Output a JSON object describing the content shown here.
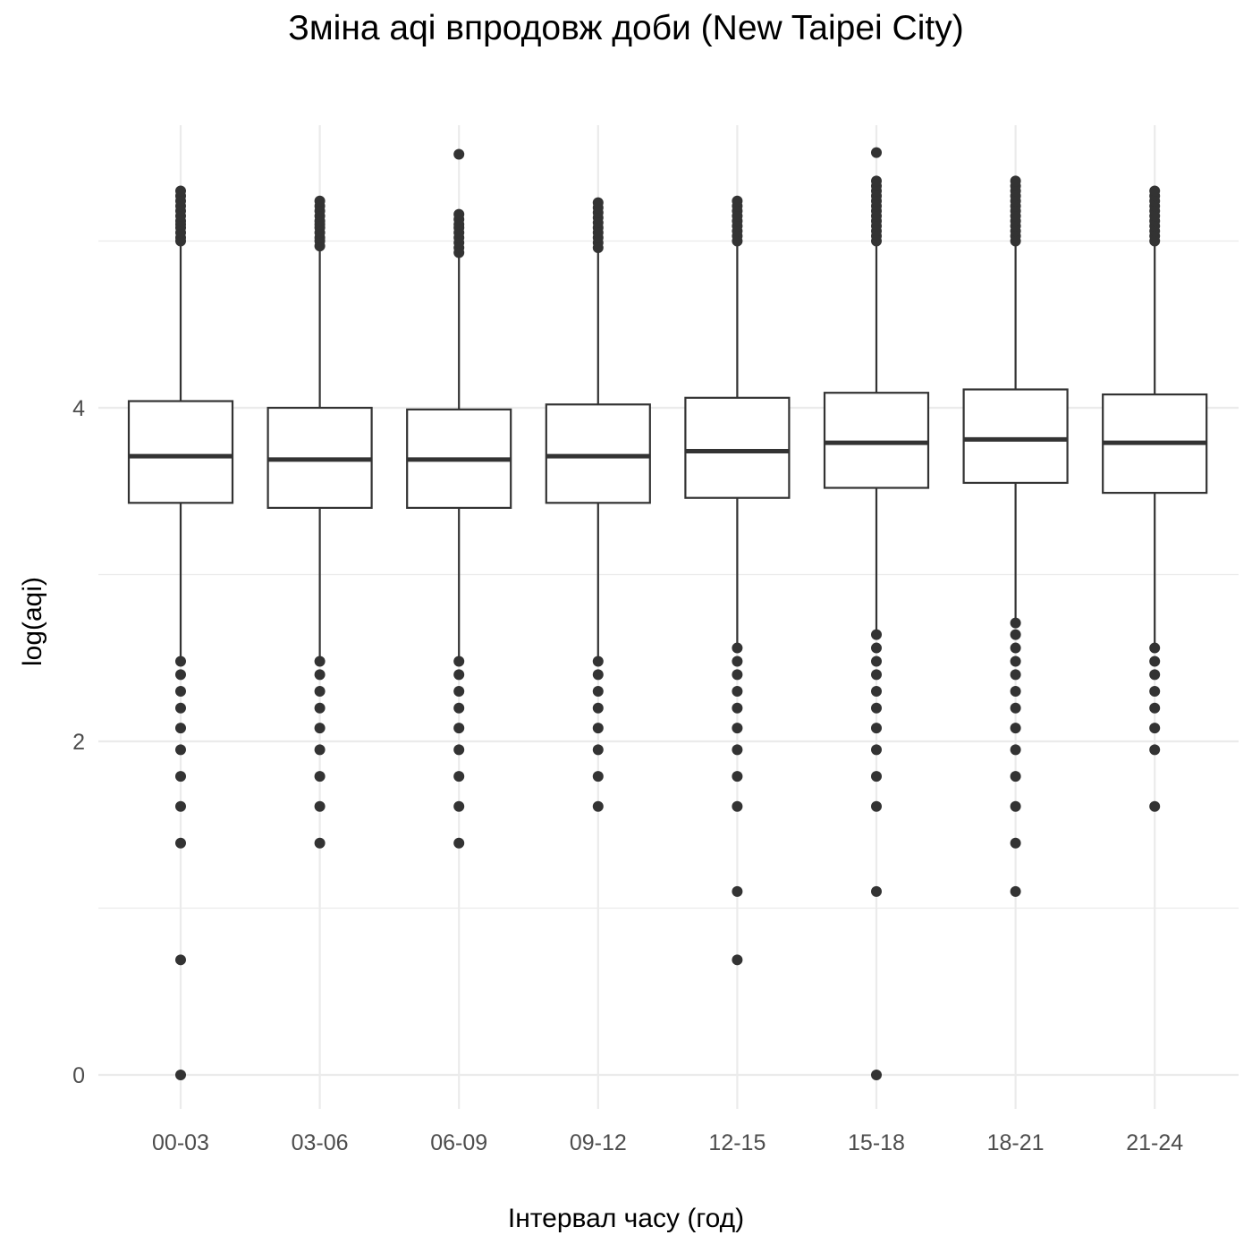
{
  "chart_data": {
    "type": "box",
    "title": "Зміна aqi впродовж доби (New Taipei City)",
    "xlabel": "Інтервал часу (год)",
    "ylabel": "log(aqi)",
    "ylim": [
      -0.25,
      5.6
    ],
    "y_ticks": [
      0,
      2,
      4
    ],
    "grid": true,
    "categories": [
      "00-03",
      "03-06",
      "06-09",
      "09-12",
      "12-15",
      "15-18",
      "18-21",
      "21-24"
    ],
    "boxes": [
      {
        "q1": 3.43,
        "median": 3.71,
        "q3": 4.04,
        "whisker_low": 2.5,
        "whisker_high": 5.0,
        "outliers_high": [
          5.0,
          5.02,
          5.05,
          5.08,
          5.1,
          5.12,
          5.15,
          5.18,
          5.21,
          5.24,
          5.27,
          5.3
        ],
        "outliers_low": [
          2.48,
          2.4,
          2.3,
          2.2,
          2.08,
          1.95,
          1.79,
          1.61,
          1.39,
          0.69,
          0.0
        ]
      },
      {
        "q1": 3.4,
        "median": 3.69,
        "q3": 4.0,
        "whisker_low": 2.5,
        "whisker_high": 4.97,
        "outliers_high": [
          4.97,
          5.0,
          5.02,
          5.05,
          5.08,
          5.1,
          5.12,
          5.15,
          5.18,
          5.21,
          5.24
        ],
        "outliers_low": [
          2.48,
          2.4,
          2.3,
          2.2,
          2.08,
          1.95,
          1.79,
          1.61,
          1.39
        ]
      },
      {
        "q1": 3.4,
        "median": 3.69,
        "q3": 3.99,
        "whisker_low": 2.5,
        "whisker_high": 4.93,
        "outliers_high": [
          4.93,
          4.96,
          4.99,
          5.02,
          5.05,
          5.08,
          5.1,
          5.13,
          5.16,
          5.52
        ],
        "outliers_low": [
          2.48,
          2.4,
          2.3,
          2.2,
          2.08,
          1.95,
          1.79,
          1.61,
          1.39
        ]
      },
      {
        "q1": 3.43,
        "median": 3.71,
        "q3": 4.02,
        "whisker_low": 2.5,
        "whisker_high": 4.96,
        "outliers_high": [
          4.96,
          4.99,
          5.02,
          5.05,
          5.08,
          5.11,
          5.14,
          5.17,
          5.2,
          5.23
        ],
        "outliers_low": [
          2.48,
          2.4,
          2.3,
          2.2,
          2.08,
          1.95,
          1.79,
          1.61
        ]
      },
      {
        "q1": 3.46,
        "median": 3.74,
        "q3": 4.06,
        "whisker_low": 2.56,
        "whisker_high": 5.0,
        "outliers_high": [
          5.0,
          5.03,
          5.06,
          5.09,
          5.12,
          5.15,
          5.18,
          5.21,
          5.24
        ],
        "outliers_low": [
          2.56,
          2.48,
          2.4,
          2.3,
          2.2,
          2.08,
          1.95,
          1.79,
          1.61,
          1.1,
          0.69
        ]
      },
      {
        "q1": 3.52,
        "median": 3.79,
        "q3": 4.09,
        "whisker_low": 2.64,
        "whisker_high": 5.0,
        "outliers_high": [
          5.0,
          5.03,
          5.06,
          5.09,
          5.12,
          5.15,
          5.18,
          5.21,
          5.24,
          5.27,
          5.3,
          5.33,
          5.36,
          5.53
        ],
        "outliers_low": [
          2.64,
          2.56,
          2.48,
          2.4,
          2.3,
          2.2,
          2.08,
          1.95,
          1.79,
          1.61,
          1.1,
          0.0
        ]
      },
      {
        "q1": 3.55,
        "median": 3.81,
        "q3": 4.11,
        "whisker_low": 2.71,
        "whisker_high": 5.0,
        "outliers_high": [
          5.0,
          5.03,
          5.06,
          5.09,
          5.12,
          5.15,
          5.18,
          5.21,
          5.24,
          5.27,
          5.3,
          5.33,
          5.36
        ],
        "outliers_low": [
          2.71,
          2.64,
          2.56,
          2.48,
          2.4,
          2.3,
          2.2,
          2.08,
          1.95,
          1.79,
          1.61,
          1.39,
          1.1
        ]
      },
      {
        "q1": 3.49,
        "median": 3.79,
        "q3": 4.08,
        "whisker_low": 2.56,
        "whisker_high": 5.0,
        "outliers_high": [
          5.0,
          5.03,
          5.06,
          5.09,
          5.12,
          5.15,
          5.18,
          5.21,
          5.24,
          5.27,
          5.3
        ],
        "outliers_low": [
          2.56,
          2.48,
          2.4,
          2.3,
          2.2,
          2.08,
          1.95,
          1.61
        ]
      }
    ],
    "colors": {
      "box_line": "#333333",
      "box_fill": "#ffffff",
      "grid": "#ebebeb",
      "outlier": "#333333"
    }
  }
}
